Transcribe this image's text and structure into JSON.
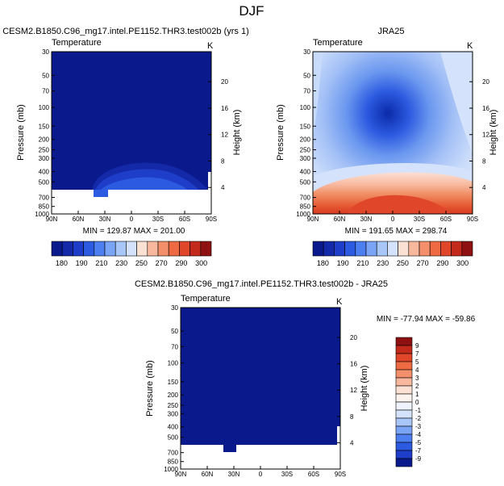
{
  "figure": {
    "title": "DJF"
  },
  "chart_data": [
    {
      "type": "heatmap",
      "title": "CESM2.B1850.C96_mg17.intel.PE1152.THR3.test002b (yrs 1)",
      "variable": "Temperature",
      "units": "K",
      "xlabel": "",
      "ylabel": "Pressure (mb)",
      "y2label": "Height (km)",
      "x_ticks": [
        "90N",
        "60N",
        "30N",
        "0",
        "30S",
        "60S",
        "90S"
      ],
      "x_range": [
        90,
        -90
      ],
      "y_ticks": [
        30,
        50,
        70,
        100,
        150,
        200,
        250,
        300,
        400,
        500,
        700,
        850,
        1000
      ],
      "y_range": [
        30,
        1000
      ],
      "y2_ticks": [
        20,
        16,
        12,
        8,
        4
      ],
      "stats": "MIN = 129.87  MAX = 201.00",
      "colorbar": {
        "orientation": "horizontal",
        "labels": [
          "180",
          "190",
          "210",
          "230",
          "250",
          "270",
          "290",
          "300"
        ],
        "colors": [
          "#0a1a8c",
          "#1429a8",
          "#1e3dc8",
          "#2c5ae0",
          "#4d7ff0",
          "#7aa4f5",
          "#a9c6f8",
          "#d4e3fb",
          "#fbe0d4",
          "#f7b89e",
          "#f38f6a",
          "#ee6a43",
          "#e0462a",
          "#c42a1c",
          "#8e1010"
        ]
      }
    },
    {
      "type": "heatmap",
      "title": "JRA25",
      "variable": "Temperature",
      "units": "K",
      "xlabel": "",
      "ylabel": "Pressure (mb)",
      "y2label": "Height (km)",
      "x_ticks": [
        "90N",
        "60N",
        "30N",
        "0",
        "30S",
        "60S",
        "90S"
      ],
      "x_range": [
        90,
        -90
      ],
      "y_ticks": [
        30,
        50,
        70,
        100,
        150,
        200,
        250,
        300,
        400,
        500,
        700,
        850,
        1000
      ],
      "y_range": [
        30,
        1000
      ],
      "y2_ticks": [
        20,
        16,
        12,
        8,
        4
      ],
      "stats": "MIN = 191.65  MAX = 298.74",
      "colorbar": {
        "orientation": "horizontal",
        "labels": [
          "180",
          "190",
          "210",
          "230",
          "250",
          "270",
          "290",
          "300"
        ],
        "colors": [
          "#0a1a8c",
          "#1429a8",
          "#1e3dc8",
          "#2c5ae0",
          "#4d7ff0",
          "#7aa4f5",
          "#a9c6f8",
          "#d4e3fb",
          "#fbe0d4",
          "#f7b89e",
          "#f38f6a",
          "#ee6a43",
          "#e0462a",
          "#c42a1c",
          "#8e1010"
        ]
      }
    },
    {
      "type": "heatmap",
      "title": "CESM2.B1850.C96_mg17.intel.PE1152.THR3.test002b - JRA25",
      "variable": "Temperature",
      "units": "K",
      "xlabel": "",
      "ylabel": "Pressure (mb)",
      "y2label": "Height (km)",
      "x_ticks": [
        "90N",
        "60N",
        "30N",
        "0",
        "30S",
        "60S",
        "90S"
      ],
      "x_range": [
        90,
        -90
      ],
      "y_ticks": [
        30,
        50,
        70,
        100,
        150,
        200,
        250,
        300,
        400,
        500,
        700,
        850,
        1000
      ],
      "y_range": [
        30,
        1000
      ],
      "y2_ticks": [
        20,
        16,
        12,
        8,
        4
      ],
      "stats": "MIN = -77.94  MAX = -59.86",
      "colorbar": {
        "orientation": "vertical",
        "labels": [
          "9",
          "7",
          "5",
          "4",
          "3",
          "2",
          "1",
          "0",
          "-1",
          "-2",
          "-3",
          "-4",
          "-5",
          "-7",
          "-9"
        ],
        "colors": [
          "#8e1010",
          "#c42a1c",
          "#e0462a",
          "#ee6a43",
          "#f38f6a",
          "#f7b89e",
          "#fbe0d4",
          "#fdf3ee",
          "#eef3fd",
          "#d4e3fb",
          "#a9c6f8",
          "#7aa4f5",
          "#4d7ff0",
          "#2c5ae0",
          "#1e3dc8",
          "#0a1a8c"
        ]
      }
    }
  ]
}
